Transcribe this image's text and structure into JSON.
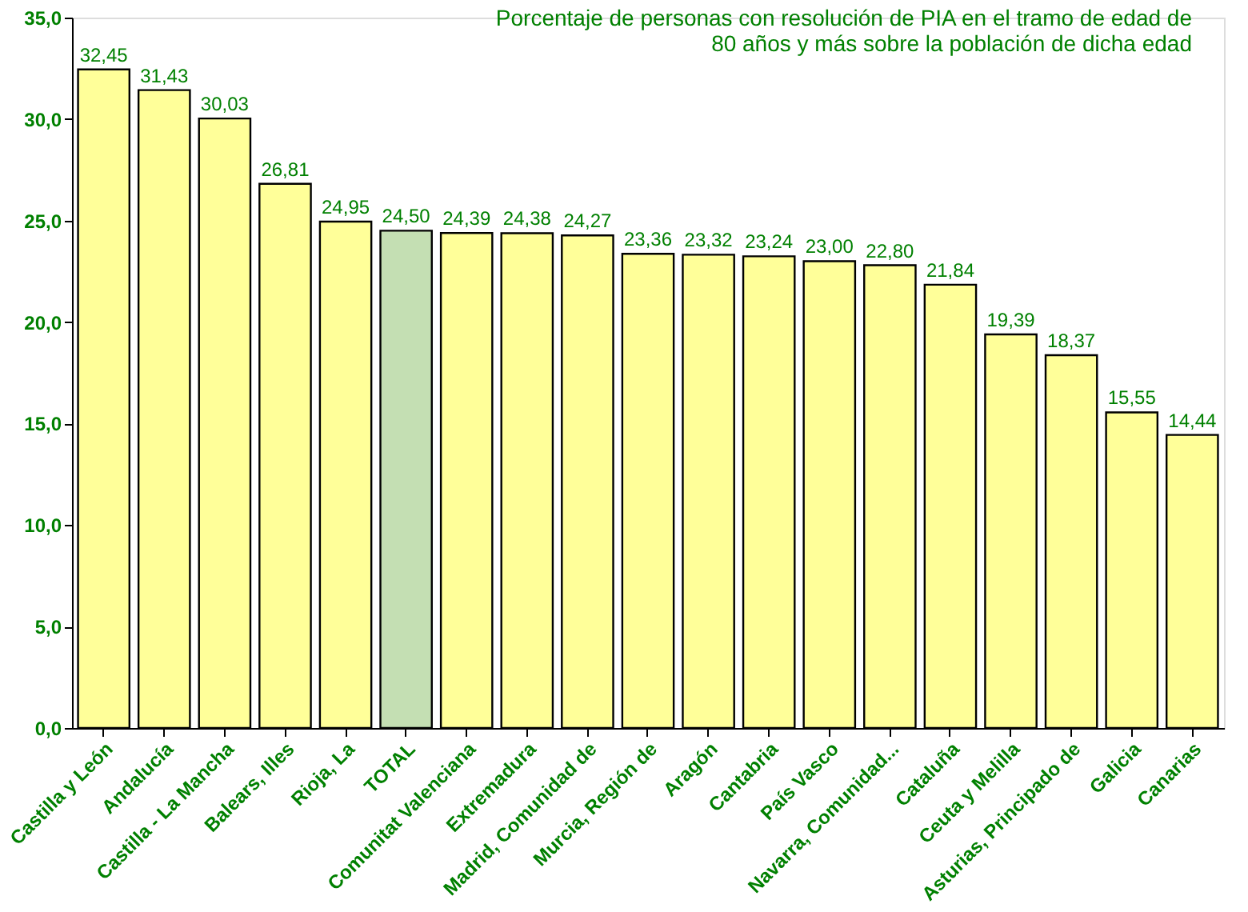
{
  "chart_data": {
    "type": "bar",
    "title": "Porcentaje de personas con resolución de PIA en el tramo de edad de 80 años y más sobre la población de dicha edad",
    "categories": [
      "Castilla y León",
      "Andalucía",
      "Castilla - La Mancha",
      "Balears, Illes",
      "Rioja, La",
      "TOTAL",
      "Comunitat Valenciana",
      "Extremadura",
      "Madrid, Comunidad de",
      "Murcia, Región de",
      "Aragón",
      "Cantabria",
      "País Vasco",
      "Navarra, Comunidad...",
      "Cataluña",
      "Ceuta y Melilla",
      "Asturias, Principado de",
      "Galicia",
      "Canarias"
    ],
    "values": [
      32.45,
      31.43,
      30.03,
      26.81,
      24.95,
      24.5,
      24.39,
      24.38,
      24.27,
      23.36,
      23.32,
      23.24,
      23.0,
      22.8,
      21.84,
      19.39,
      18.37,
      15.55,
      14.44
    ],
    "value_labels": [
      "32,45",
      "31,43",
      "30,03",
      "26,81",
      "24,95",
      "24,50",
      "24,39",
      "24,38",
      "24,27",
      "23,36",
      "23,32",
      "23,24",
      "23,00",
      "22,80",
      "21,84",
      "19,39",
      "18,37",
      "15,55",
      "14,44"
    ],
    "colors": [
      "#ffff99",
      "#ffff99",
      "#ffff99",
      "#ffff99",
      "#ffff99",
      "#c4dfb3",
      "#ffff99",
      "#ffff99",
      "#ffff99",
      "#ffff99",
      "#ffff99",
      "#ffff99",
      "#ffff99",
      "#ffff99",
      "#ffff99",
      "#ffff99",
      "#ffff99",
      "#ffff99",
      "#ffff99"
    ],
    "ylim": [
      0,
      35
    ],
    "yticks": [
      {
        "value": 0,
        "label": "0,0"
      },
      {
        "value": 5,
        "label": "5,0"
      },
      {
        "value": 10,
        "label": "10,0"
      },
      {
        "value": 15,
        "label": "15,0"
      },
      {
        "value": 20,
        "label": "20,0"
      },
      {
        "value": 25,
        "label": "25,0"
      },
      {
        "value": 30,
        "label": "30,0"
      },
      {
        "value": 35,
        "label": "35,0"
      }
    ],
    "grid": false
  }
}
